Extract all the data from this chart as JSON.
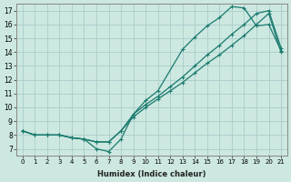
{
  "xlabel": "Humidex (Indice chaleur)",
  "background_color": "#cce8e0",
  "grid_color": "#aacccc",
  "line_color": "#1a7a6e",
  "xlim": [
    -0.5,
    21.5
  ],
  "ylim": [
    6.5,
    17.5
  ],
  "xticks": [
    0,
    1,
    2,
    3,
    4,
    5,
    6,
    7,
    8,
    9,
    10,
    11,
    12,
    13,
    14,
    15,
    16,
    17,
    18,
    19,
    20,
    21
  ],
  "yticks": [
    7,
    8,
    9,
    10,
    11,
    12,
    13,
    14,
    15,
    16,
    17
  ],
  "series": [
    {
      "x": [
        0,
        1,
        2,
        3,
        4,
        5,
        6,
        7,
        8,
        9,
        10,
        11,
        13,
        14,
        15,
        16,
        17,
        18,
        19,
        20,
        21
      ],
      "y": [
        8.3,
        8.0,
        8.0,
        8.0,
        7.8,
        7.7,
        7.0,
        6.8,
        7.7,
        9.5,
        10.5,
        11.2,
        14.2,
        15.1,
        15.9,
        16.5,
        17.3,
        17.2,
        15.9,
        16.0,
        14.1
      ]
    },
    {
      "x": [
        0,
        1,
        2,
        3,
        4,
        5,
        6,
        7,
        8,
        9,
        10,
        11,
        12,
        13,
        14,
        15,
        16,
        17,
        18,
        19,
        20,
        21
      ],
      "y": [
        8.3,
        8.0,
        8.0,
        8.0,
        7.8,
        7.7,
        7.5,
        7.5,
        8.3,
        9.5,
        10.2,
        10.8,
        11.5,
        12.2,
        13.0,
        13.8,
        14.5,
        15.3,
        16.0,
        16.8,
        17.0,
        14.3
      ]
    },
    {
      "x": [
        0,
        1,
        2,
        3,
        4,
        5,
        6,
        7,
        8,
        9,
        10,
        11,
        12,
        13,
        14,
        15,
        16,
        17,
        18,
        19,
        20,
        21
      ],
      "y": [
        8.3,
        8.0,
        8.0,
        8.0,
        7.8,
        7.7,
        7.5,
        7.5,
        8.3,
        9.3,
        10.0,
        10.6,
        11.2,
        11.8,
        12.5,
        13.2,
        13.8,
        14.5,
        15.2,
        16.0,
        16.8,
        14.0
      ]
    }
  ]
}
